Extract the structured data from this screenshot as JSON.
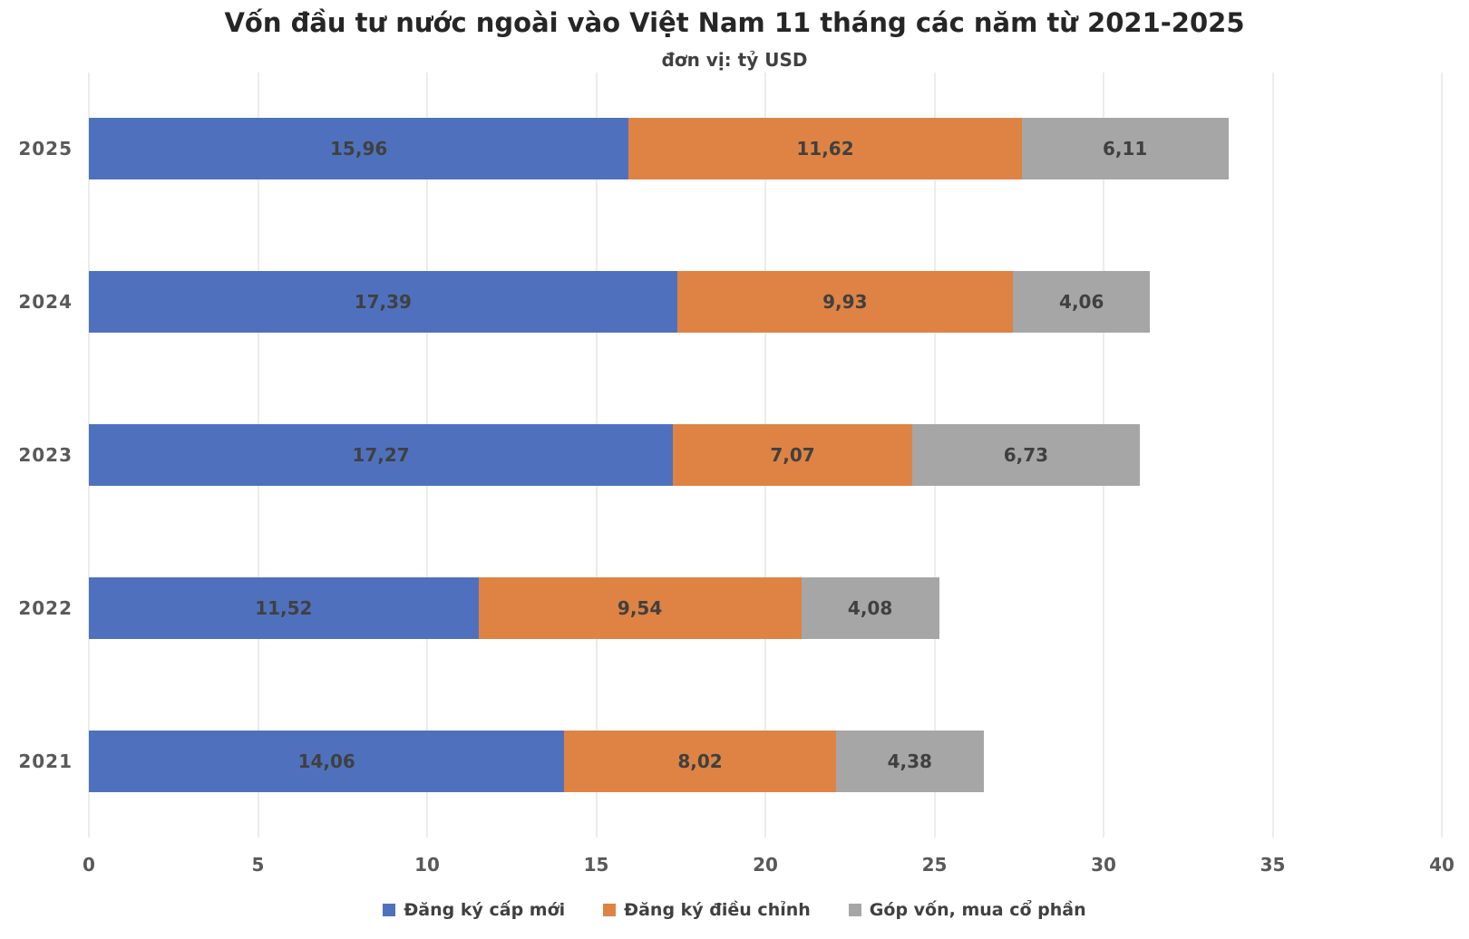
{
  "title": "Vốn đầu tư nước ngoài vào Việt Nam 11 tháng các năm từ 2021-2025",
  "subtitle": "đơn vị: tỷ USD",
  "colors": {
    "series_blue": "#4F71BD",
    "series_orange": "#DE8344",
    "series_gray": "#A6A6A6",
    "gridline": "#D9D9D9",
    "data_label": "#404040",
    "axis_text": "#595959",
    "title_text": "#262626"
  },
  "chart_data": {
    "type": "bar",
    "orientation": "horizontal",
    "stacked": true,
    "title": "Vốn đầu tư nước ngoài vào Việt Nam 11 tháng các năm từ 2021-2025",
    "subtitle": "đơn vị: tỷ USD",
    "unit": "tỷ USD",
    "categories": [
      "2025",
      "2024",
      "2023",
      "2022",
      "2021"
    ],
    "series": [
      {
        "name": "Đăng ký cấp mới",
        "color": "#4F71BD",
        "values": [
          15.96,
          17.39,
          17.27,
          11.52,
          14.06
        ],
        "labels": [
          "15,96",
          "17,39",
          "17,27",
          "11,52",
          "14,06"
        ]
      },
      {
        "name": "Đăng ký điều chỉnh",
        "color": "#DE8344",
        "values": [
          11.62,
          9.93,
          7.07,
          9.54,
          8.02
        ],
        "labels": [
          "11,62",
          "9,93",
          "7,07",
          "9,54",
          "8,02"
        ]
      },
      {
        "name": "Góp vốn, mua cổ phần",
        "color": "#A6A6A6",
        "values": [
          6.11,
          4.06,
          6.73,
          4.08,
          4.38
        ],
        "labels": [
          "6,11",
          "4,06",
          "6,73",
          "4,08",
          "4,38"
        ]
      }
    ],
    "xlim": [
      0,
      40
    ],
    "x_ticks": [
      0,
      5,
      10,
      15,
      20,
      25,
      30,
      35,
      40
    ],
    "grid": true,
    "legend_position": "bottom"
  }
}
